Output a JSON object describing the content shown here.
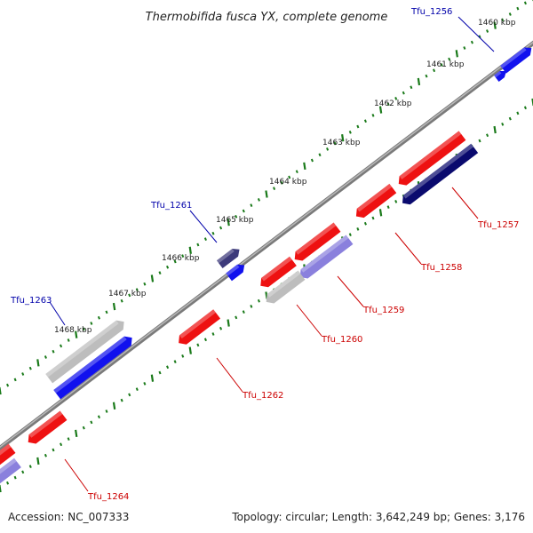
{
  "title": "Thermobifida fusca YX, complete genome",
  "footer": {
    "accession": "Accession: NC_007333",
    "summary": "Topology: circular; Length: 3,642,249 bp; Genes: 3,176"
  },
  "scale_labels": [
    "1460 kbp",
    "1461 kbp",
    "1462 kbp",
    "1463 kbp",
    "1464 kbp",
    "1465 kbp",
    "1466 kbp",
    "1467 kbp",
    "1468 kbp"
  ],
  "gene_labels": {
    "forward": [
      "Tfu_1256",
      "Tfu_1261",
      "Tfu_1263"
    ],
    "reverse": [
      "Tfu_1257",
      "Tfu_1258",
      "Tfu_1259",
      "Tfu_1260",
      "Tfu_1262",
      "Tfu_1264"
    ]
  },
  "colors": {
    "forward_label": "#0000aa",
    "reverse_label": "#cc0000",
    "red_gene": "#ee1111",
    "blue_gene": "#1111ee",
    "navy_gene": "#0a0a6e",
    "slate_gene": "#3d3a7a",
    "lavender_gene": "#8a80dd",
    "gray_gene": "#bdbdbd",
    "backbone": "#808080",
    "tick": "#1a7a1a"
  }
}
